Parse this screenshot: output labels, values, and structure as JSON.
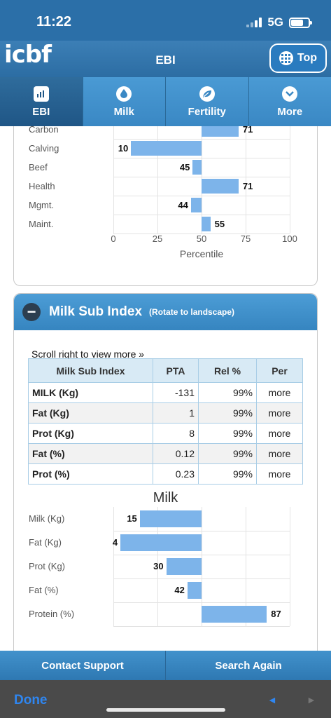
{
  "status_bar": {
    "time": "11:22",
    "network": "5G"
  },
  "header": {
    "logo": "icbf",
    "title": "EBI",
    "top_button_label": "Top"
  },
  "tabs": [
    {
      "label": "EBI",
      "icon": "bar-chart-icon",
      "active": true
    },
    {
      "label": "Milk",
      "icon": "drop-icon",
      "active": false
    },
    {
      "label": "Fertility",
      "icon": "leaf-icon",
      "active": false
    },
    {
      "label": "More",
      "icon": "chevron-down-icon",
      "active": false
    }
  ],
  "ebi_chart": {
    "rows": [
      {
        "label": "Carbon",
        "value": 71
      },
      {
        "label": "Calving",
        "value": 10
      },
      {
        "label": "Beef",
        "value": 45
      },
      {
        "label": "Health",
        "value": 71
      },
      {
        "label": "Mgmt.",
        "value": 44
      },
      {
        "label": "Maint.",
        "value": 55
      }
    ],
    "ticks": [
      "0",
      "25",
      "50",
      "75",
      "100"
    ],
    "xlabel": "Percentile"
  },
  "milk_section": {
    "title": "Milk Sub Index",
    "subtitle": "(Rotate to landscape)",
    "scroll_hint": "Scroll right to view more »",
    "table": {
      "headers": [
        "Milk Sub Index",
        "PTA",
        "Rel %",
        "Per"
      ],
      "rows": [
        [
          "MILK (Kg)",
          "-131",
          "99%",
          "more"
        ],
        [
          "Fat (Kg)",
          "1",
          "99%",
          "more"
        ],
        [
          "Prot (Kg)",
          "8",
          "99%",
          "more"
        ],
        [
          "Fat (%)",
          "0.12",
          "99%",
          "more"
        ],
        [
          "Prot (%)",
          "0.23",
          "99%",
          "more"
        ]
      ]
    },
    "chart_title": "Milk",
    "chart_rows": [
      {
        "label": "Milk (Kg)",
        "value": 15
      },
      {
        "label": "Fat (Kg)",
        "value": 4
      },
      {
        "label": "Prot (Kg)",
        "value": 30
      },
      {
        "label": "Fat (%)",
        "value": 42
      },
      {
        "label": "Protein (%)",
        "value": 87
      }
    ]
  },
  "bottom_buttons": {
    "contact": "Contact Support",
    "search": "Search Again"
  },
  "browser": {
    "done": "Done",
    "back": "◄",
    "forward": "►"
  },
  "colors": {
    "bar": "#7db4ea",
    "header": "#2b6fa8",
    "accent": "#3a88c4"
  }
}
